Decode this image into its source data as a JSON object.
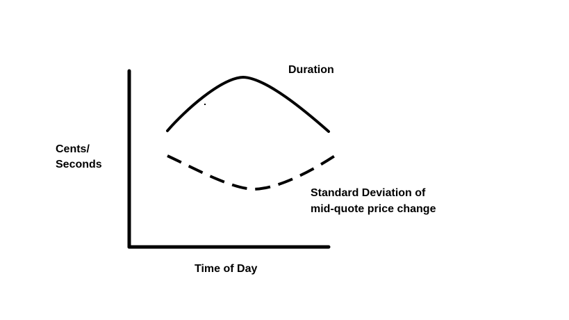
{
  "chart_data": {
    "type": "line",
    "xlabel": "Time of Day",
    "ylabel": [
      "Cents/",
      "Seconds"
    ],
    "grid": false,
    "series": [
      {
        "name": "Duration",
        "line_style": "solid",
        "color": "#000000"
      },
      {
        "name": [
          "Standard Deviation of",
          "mid-quote price change"
        ],
        "line_style": "dashed",
        "color": "#000000"
      }
    ]
  }
}
